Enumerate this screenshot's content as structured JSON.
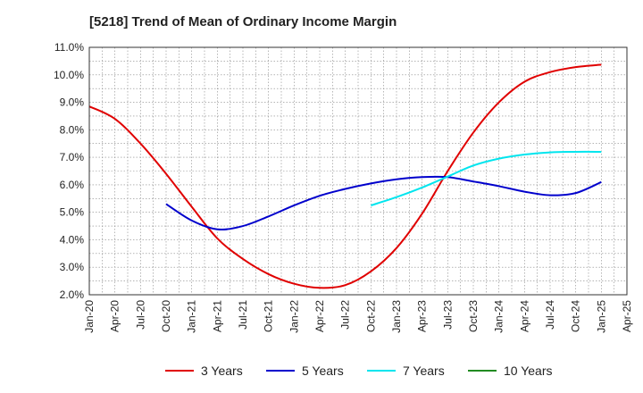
{
  "chart_data": {
    "type": "line",
    "title": "[5218]  Trend of Mean of Ordinary Income Margin",
    "xlabel": "",
    "ylabel": "",
    "x_ticks": [
      "Jan-20",
      "Apr-20",
      "Jul-20",
      "Oct-20",
      "Jan-21",
      "Apr-21",
      "Jul-21",
      "Oct-21",
      "Jan-22",
      "Apr-22",
      "Jul-22",
      "Oct-22",
      "Jan-23",
      "Apr-23",
      "Jul-23",
      "Oct-23",
      "Jan-24",
      "Apr-24",
      "Jul-24",
      "Oct-24",
      "Jan-25",
      "Apr-25"
    ],
    "y_ticks": [
      "2.0%",
      "3.0%",
      "4.0%",
      "5.0%",
      "6.0%",
      "7.0%",
      "8.0%",
      "9.0%",
      "10.0%",
      "11.0%"
    ],
    "ylim": [
      2.0,
      11.0
    ],
    "grid": true,
    "legend_position": "bottom",
    "series": [
      {
        "name": "3 Years",
        "color": "#e00000",
        "points": [
          [
            "Jan-20",
            8.85
          ],
          [
            "Apr-20",
            8.4
          ],
          [
            "Jul-20",
            7.5
          ],
          [
            "Oct-20",
            6.4
          ],
          [
            "Jan-21",
            5.2
          ],
          [
            "Apr-21",
            4.05
          ],
          [
            "Jul-21",
            3.3
          ],
          [
            "Oct-21",
            2.75
          ],
          [
            "Jan-22",
            2.4
          ],
          [
            "Apr-22",
            2.25
          ],
          [
            "Jul-22",
            2.35
          ],
          [
            "Oct-22",
            2.85
          ],
          [
            "Jan-23",
            3.7
          ],
          [
            "Apr-23",
            4.95
          ],
          [
            "Jul-23",
            6.5
          ],
          [
            "Oct-23",
            7.9
          ],
          [
            "Jan-24",
            9.0
          ],
          [
            "Apr-24",
            9.75
          ],
          [
            "Jul-24",
            10.1
          ],
          [
            "Oct-24",
            10.28
          ],
          [
            "Jan-25",
            10.37
          ]
        ]
      },
      {
        "name": "5 Years",
        "color": "#0000cc",
        "points": [
          [
            "Oct-20",
            5.3
          ],
          [
            "Jan-21",
            4.7
          ],
          [
            "Apr-21",
            4.38
          ],
          [
            "Jul-21",
            4.5
          ],
          [
            "Oct-21",
            4.85
          ],
          [
            "Jan-22",
            5.25
          ],
          [
            "Apr-22",
            5.6
          ],
          [
            "Jul-22",
            5.85
          ],
          [
            "Oct-22",
            6.05
          ],
          [
            "Jan-23",
            6.2
          ],
          [
            "Apr-23",
            6.28
          ],
          [
            "Jul-23",
            6.28
          ],
          [
            "Oct-23",
            6.12
          ],
          [
            "Jan-24",
            5.95
          ],
          [
            "Apr-24",
            5.75
          ],
          [
            "Jul-24",
            5.62
          ],
          [
            "Oct-24",
            5.7
          ],
          [
            "Jan-25",
            6.1
          ]
        ]
      },
      {
        "name": "7 Years",
        "color": "#00e5ee",
        "points": [
          [
            "Oct-22",
            5.25
          ],
          [
            "Jan-23",
            5.55
          ],
          [
            "Apr-23",
            5.9
          ],
          [
            "Jul-23",
            6.3
          ],
          [
            "Oct-23",
            6.7
          ],
          [
            "Jan-24",
            6.95
          ],
          [
            "Apr-24",
            7.1
          ],
          [
            "Jul-24",
            7.18
          ],
          [
            "Oct-24",
            7.2
          ],
          [
            "Jan-25",
            7.2
          ]
        ]
      },
      {
        "name": "10 Years",
        "color": "#228b22",
        "points": []
      }
    ]
  }
}
